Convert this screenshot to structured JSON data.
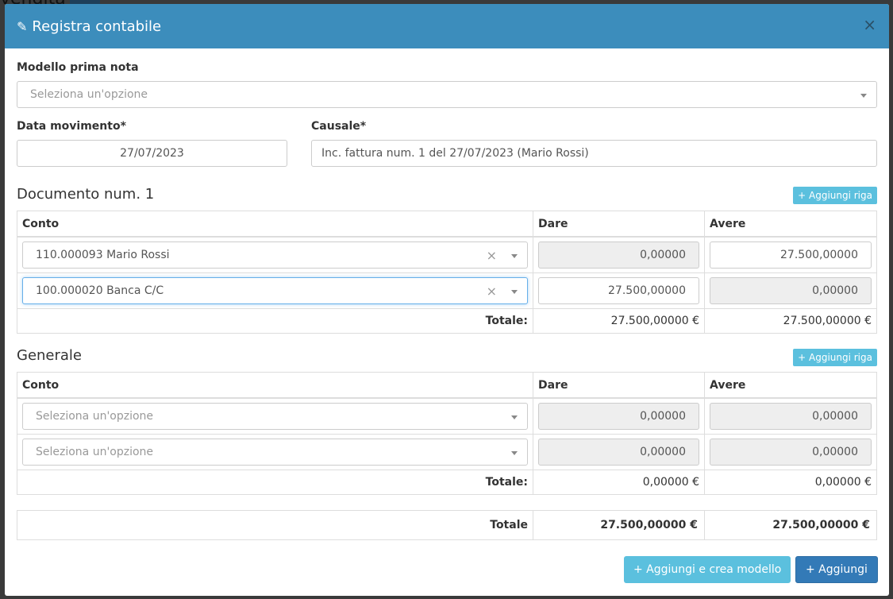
{
  "background": {
    "text": "vendita"
  },
  "modal": {
    "title": "Registra contabile",
    "icon": "pencil-icon",
    "close": "×"
  },
  "modello": {
    "label": "Modello prima nota",
    "placeholder": "Seleziona un'opzione"
  },
  "data_movimento": {
    "label": "Data movimento*",
    "value": "27/07/2023"
  },
  "causale": {
    "label": "Causale*",
    "value": "Inc. fattura num. 1 del 27/07/2023 (Mario Rossi)"
  },
  "documento": {
    "title": "Documento num. 1",
    "add_label": "+ Aggiungi riga",
    "headers": [
      "Conto",
      "Dare",
      "Avere"
    ],
    "rows": [
      {
        "conto": "110.000093 Mario Rossi",
        "dare": "0,00000",
        "avere": "27.500,00000"
      },
      {
        "conto": "100.000020 Banca C/C",
        "dare": "27.500,00000",
        "avere": "0,00000"
      }
    ],
    "totale_label": "Totale:",
    "totale_dare": "27.500,00000 €",
    "totale_avere": "27.500,00000 €"
  },
  "generale": {
    "title": "Generale",
    "add_label": "+ Aggiungi riga",
    "headers": [
      "Conto",
      "Dare",
      "Avere"
    ],
    "rows": [
      {
        "conto": "Seleziona un'opzione",
        "dare": "0,00000",
        "avere": "0,00000"
      },
      {
        "conto": "Seleziona un'opzione",
        "dare": "0,00000",
        "avere": "0,00000"
      }
    ],
    "totale_label": "Totale:",
    "totale_dare": "0,00000 €",
    "totale_avere": "0,00000 €"
  },
  "totale": {
    "label": "Totale",
    "dare": "27.500,00000 €",
    "avere": "27.500,00000 €"
  },
  "buttons": {
    "crea_modello": "+ Aggiungi e crea modello",
    "aggiungi": "+ Aggiungi"
  },
  "colors": {
    "header": "#3c8dbc",
    "info": "#5bc0de",
    "primary": "#337ab7"
  }
}
